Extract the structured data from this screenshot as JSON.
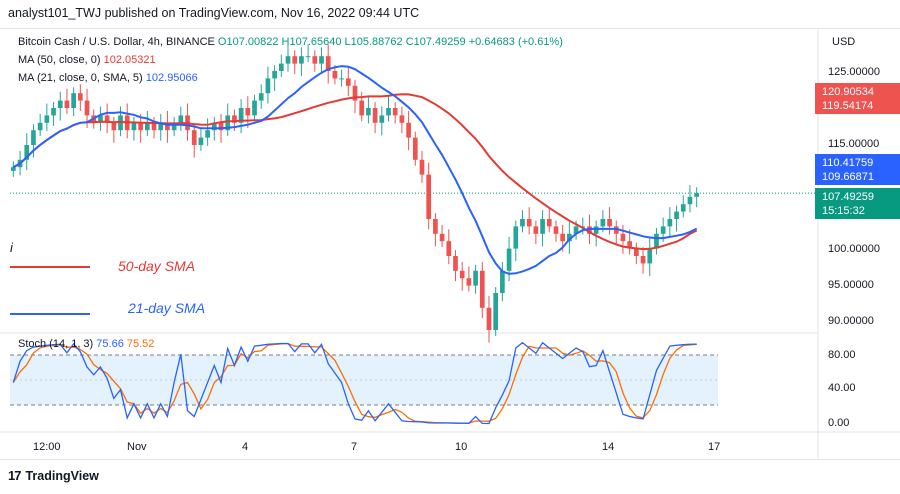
{
  "header": {
    "title": "analyst101_TWJ published on TradingView.com, Nov 16, 2022 09:44 UTC"
  },
  "legend": {
    "symbol": "Bitcoin Cash / U.S. Dollar, 4h, BINANCE",
    "ohlc": "O107.00822 H107.65640 L105.88762 C107.49259 +0.64683 (+0.61%)",
    "ma50_label": "MA (50, close, 0)",
    "ma50_value": "102.05321",
    "ma21_label": "MA (21, close, 0, SMA, 5)",
    "ma21_value": "102.95066",
    "stoch_label": "Stoch (14, 1, 3)",
    "stoch_k": "75.66",
    "stoch_d": "75.52"
  },
  "axis": {
    "currency": "USD",
    "price_ticks": [
      "125.00000",
      "115.00000",
      "100.00000",
      "95.00000",
      "90.00000"
    ],
    "stoch_ticks": [
      "80.00",
      "40.00",
      "0.00"
    ],
    "time_ticks": [
      "12:00",
      "Nov",
      "4",
      "7",
      "10",
      "14",
      "17"
    ]
  },
  "price_badges": {
    "ma21_upper": [
      "120.90534",
      "119.54174"
    ],
    "ma50_upper": [
      "110.41759",
      "109.66871"
    ],
    "current": [
      "107.49259",
      "15:15:32"
    ]
  },
  "annotations": {
    "sma50": "50-day SMA",
    "sma21": "21-day SMA",
    "marker": "i"
  },
  "footer": {
    "logo_text": "TradingView"
  },
  "colors": {
    "up": "#26a69a",
    "down": "#ef5350",
    "ma50": "#e53935",
    "ma21": "#2962ff",
    "stoch_k": "#2962ff",
    "stoch_d": "#ff6d00",
    "band": "#e3f2fd"
  },
  "chart_data": {
    "type": "candlestick",
    "y_range": [
      89,
      129
    ],
    "candles_close": [
      111,
      112,
      114,
      116,
      117,
      118,
      119,
      120,
      119,
      121,
      120,
      118,
      117,
      118,
      117,
      116,
      118,
      116,
      117,
      116,
      117,
      116,
      117,
      116,
      117,
      118,
      116,
      114,
      115,
      116,
      117,
      116,
      118,
      117,
      119,
      118,
      120,
      121,
      123,
      124,
      125,
      126,
      125,
      126,
      126,
      125,
      126,
      124,
      123,
      123,
      122,
      120,
      118,
      119,
      117,
      118,
      119,
      118,
      117,
      115,
      112,
      110,
      104,
      102,
      101,
      99,
      97,
      96,
      95,
      97,
      92,
      89,
      94,
      97,
      100,
      103,
      104,
      103,
      102,
      104,
      103,
      102,
      101,
      102,
      103,
      103,
      102,
      103,
      104,
      103,
      102,
      101,
      100,
      99,
      98,
      100,
      102,
      103,
      104,
      105,
      106,
      107,
      107.49
    ]
  }
}
